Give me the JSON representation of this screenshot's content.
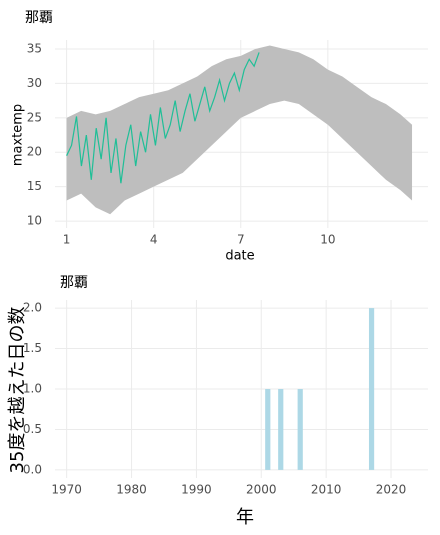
{
  "chart_data": [
    {
      "type": "line",
      "title": "那覇",
      "x_label": "date",
      "y_label": "maxtemp",
      "xlim": [
        0.6,
        13.45
      ],
      "xticks": [
        1,
        4,
        7,
        10
      ],
      "ylim": [
        9,
        36.3
      ],
      "yticks": [
        10,
        15,
        20,
        25,
        30,
        35
      ],
      "grid": true,
      "band": {
        "color": "#bebebe",
        "x": [
          1,
          1.5,
          2,
          2.5,
          3,
          3.5,
          4,
          4.5,
          5,
          5.5,
          6,
          6.5,
          7,
          7.5,
          8,
          8.5,
          9,
          9.5,
          10,
          10.5,
          11,
          11.5,
          12,
          12.5,
          12.9
        ],
        "lower": [
          13,
          14,
          12,
          11,
          13,
          14,
          15,
          16,
          17,
          19,
          21,
          23,
          25,
          26,
          27,
          27.5,
          27,
          25.5,
          24,
          22,
          20,
          18,
          16,
          14.5,
          13
        ],
        "upper": [
          25,
          26,
          25.5,
          26,
          27,
          28,
          28.5,
          29,
          30,
          31,
          32.5,
          33.5,
          34,
          35,
          35.5,
          35,
          34.5,
          33.5,
          32,
          31,
          29.5,
          28,
          27,
          25.5,
          24
        ]
      },
      "series": [
        {
          "color": "#1fbf97",
          "x": [
            1,
            1.17,
            1.34,
            1.51,
            1.68,
            1.85,
            2.02,
            2.19,
            2.36,
            2.53,
            2.7,
            2.87,
            3.04,
            3.21,
            3.38,
            3.55,
            3.72,
            3.89,
            4.06,
            4.23,
            4.4,
            4.57,
            4.74,
            4.91,
            5.08,
            5.25,
            5.42,
            5.59,
            5.76,
            5.93,
            6.1,
            6.27,
            6.44,
            6.61,
            6.78,
            6.95,
            7.12,
            7.29,
            7.46,
            7.63
          ],
          "values": [
            19.5,
            21,
            25.2,
            18,
            22.5,
            16,
            23.5,
            19,
            25,
            17,
            22,
            15.5,
            21,
            24,
            18,
            23,
            20,
            25.5,
            21,
            26.5,
            22,
            24,
            27.5,
            23,
            26,
            28.5,
            24.5,
            27,
            29.5,
            26,
            28,
            30.5,
            27.5,
            30,
            31.5,
            29,
            32,
            33.5,
            32.5,
            34.5
          ]
        }
      ]
    },
    {
      "type": "bar",
      "title": "那覇",
      "x_label": "年",
      "y_label": "35度を越えた日の数",
      "xlim": [
        1968.2,
        2025.7
      ],
      "xticks": [
        1970,
        1980,
        1990,
        2000,
        2010,
        2020
      ],
      "ylim": [
        -0.1,
        2.1
      ],
      "yticks": [
        {
          "value": 0,
          "label": "0.0"
        },
        {
          "value": 0.5,
          "label": "0.5"
        },
        {
          "value": 1,
          "label": "1.0"
        },
        {
          "value": 1.5,
          "label": "1.5"
        },
        {
          "value": 2,
          "label": "2.0"
        }
      ],
      "grid": true,
      "color": "#add8e6",
      "x": [
        2001,
        2003,
        2006,
        2017
      ],
      "values": [
        1,
        1,
        1,
        2
      ]
    }
  ]
}
